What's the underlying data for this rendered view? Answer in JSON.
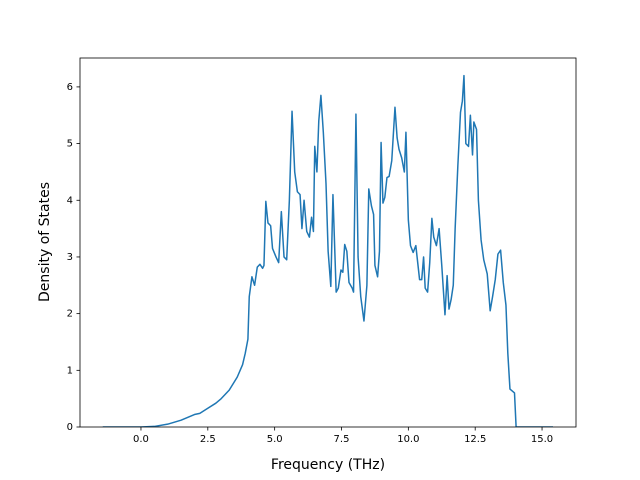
{
  "chart_data": {
    "type": "line",
    "xlabel": "Frequency (THz)",
    "ylabel": "Density of States",
    "xlim": [
      -2.28,
      16.27
    ],
    "ylim": [
      0,
      6.51
    ],
    "xticks": [
      {
        "value": 0,
        "label": "0.0"
      },
      {
        "value": 2.5,
        "label": "2.5"
      },
      {
        "value": 5,
        "label": "5.0"
      },
      {
        "value": 7.5,
        "label": "7.5"
      },
      {
        "value": 10,
        "label": "10.0"
      },
      {
        "value": 12.5,
        "label": "12.5"
      },
      {
        "value": 15,
        "label": "15.0"
      }
    ],
    "yticks": [
      0,
      1,
      2,
      3,
      4,
      5,
      6
    ],
    "grid": false,
    "series": [
      {
        "color": "#1f77b4",
        "x": [
          -1.43,
          -0.5,
          0.0,
          0.5,
          1.0,
          1.5,
          1.8,
          2.0,
          2.2,
          2.5,
          2.8,
          3.0,
          3.3,
          3.6,
          3.8,
          3.9,
          4.0,
          4.05,
          4.15,
          4.25,
          4.35,
          4.45,
          4.55,
          4.6,
          4.67,
          4.75,
          4.85,
          4.92,
          5.05,
          5.15,
          5.25,
          5.35,
          5.45,
          5.55,
          5.65,
          5.75,
          5.85,
          5.95,
          6.02,
          6.1,
          6.2,
          6.3,
          6.38,
          6.45,
          6.5,
          6.58,
          6.65,
          6.73,
          6.82,
          6.92,
          7.0,
          7.1,
          7.18,
          7.3,
          7.38,
          7.48,
          7.55,
          7.62,
          7.7,
          7.78,
          7.9,
          7.95,
          8.04,
          8.12,
          8.22,
          8.34,
          8.45,
          8.52,
          8.62,
          8.7,
          8.75,
          8.85,
          8.92,
          8.98,
          9.05,
          9.12,
          9.2,
          9.28,
          9.38,
          9.5,
          9.58,
          9.65,
          9.75,
          9.85,
          9.91,
          10.0,
          10.08,
          10.18,
          10.28,
          10.35,
          10.42,
          10.5,
          10.57,
          10.63,
          10.72,
          10.8,
          10.88,
          10.95,
          11.05,
          11.15,
          11.25,
          11.37,
          11.45,
          11.52,
          11.6,
          11.68,
          11.75,
          11.85,
          11.95,
          12.02,
          12.08,
          12.15,
          12.25,
          12.32,
          12.4,
          12.45,
          12.55,
          12.62,
          12.72,
          12.82,
          12.95,
          13.06,
          13.15,
          13.25,
          13.35,
          13.45,
          13.55,
          13.65,
          13.72,
          13.8,
          13.9,
          13.97,
          14.03,
          14.5,
          15.41
        ],
        "values": [
          0,
          0,
          0,
          0.01,
          0.05,
          0.12,
          0.18,
          0.22,
          0.24,
          0.33,
          0.42,
          0.5,
          0.65,
          0.88,
          1.1,
          1.3,
          1.55,
          2.3,
          2.65,
          2.5,
          2.82,
          2.87,
          2.8,
          2.85,
          3.98,
          3.6,
          3.55,
          3.15,
          3.0,
          2.9,
          3.8,
          3.0,
          2.95,
          4.0,
          5.57,
          4.5,
          4.15,
          4.1,
          3.5,
          4.0,
          3.45,
          3.35,
          3.7,
          3.45,
          4.95,
          4.5,
          5.4,
          5.85,
          5.2,
          4.3,
          3.1,
          2.48,
          4.1,
          2.38,
          2.45,
          2.77,
          2.73,
          3.22,
          3.1,
          2.55,
          2.45,
          2.38,
          5.52,
          3.0,
          2.3,
          1.87,
          2.5,
          4.2,
          3.9,
          3.75,
          2.85,
          2.65,
          3.1,
          5.02,
          3.95,
          4.05,
          4.4,
          4.42,
          4.7,
          5.64,
          5.1,
          4.9,
          4.75,
          4.5,
          5.2,
          3.65,
          3.2,
          3.08,
          3.2,
          2.9,
          2.6,
          2.6,
          3.0,
          2.45,
          2.38,
          2.9,
          3.68,
          3.35,
          3.2,
          3.5,
          2.85,
          1.98,
          2.67,
          2.08,
          2.25,
          2.5,
          3.5,
          4.6,
          5.55,
          5.75,
          6.2,
          5.0,
          4.95,
          5.5,
          4.8,
          5.38,
          5.25,
          4.0,
          3.3,
          2.95,
          2.7,
          2.05,
          2.3,
          2.6,
          3.05,
          3.12,
          2.55,
          2.15,
          1.3,
          0.67,
          0.63,
          0.6,
          0,
          0,
          0
        ]
      }
    ]
  }
}
